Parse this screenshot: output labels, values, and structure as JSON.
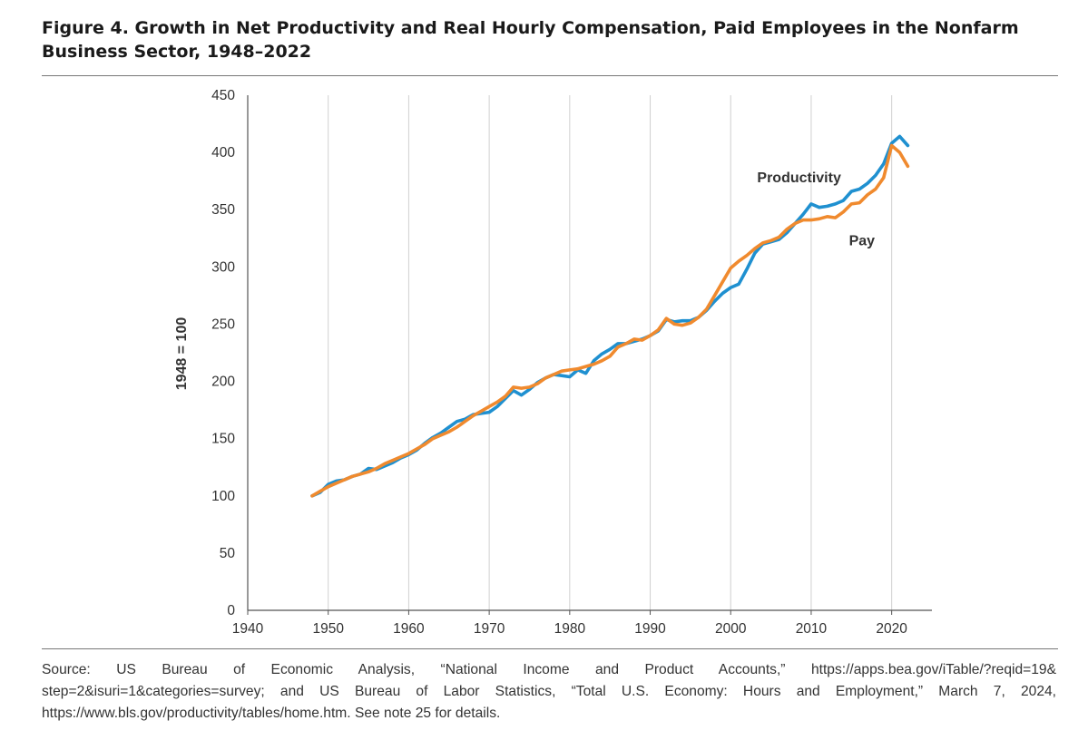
{
  "figure": {
    "title": "Figure 4. Growth in Net Productivity and Real Hourly Compensation, Paid Employees in the Nonfarm Business Sector, 1948–2022",
    "source_lines": [
      "Source: US Bureau of Economic Analysis, “National Income and Product Accounts,” https://apps.bea.gov/iTable/?reqid=19&",
      "step=2&isuri=1&categories=survey; and US Bureau of Labor Statistics, “Total U.S. Economy: Hours and Employment,” March 7, 2024,",
      "https://www.bls.gov/productivity/tables/home.htm. See note 25 for details."
    ]
  },
  "chart_data": {
    "type": "line",
    "title": "Figure 4. Growth in Net Productivity and Real Hourly Compensation, Paid Employees in the Nonfarm Business Sector, 1948–2022",
    "xlabel": "",
    "ylabel": "1948 = 100",
    "xlim": [
      1940,
      2025
    ],
    "ylim": [
      0,
      450
    ],
    "xticks": [
      1940,
      1950,
      1960,
      1970,
      1980,
      1990,
      2000,
      2010,
      2020
    ],
    "yticks": [
      0,
      50,
      100,
      150,
      200,
      250,
      300,
      350,
      400,
      450
    ],
    "grid": "vertical",
    "colors": {
      "productivity": "#1f90d0",
      "pay": "#f08a2e",
      "grid": "#d0d0d0",
      "axis": "#555555"
    },
    "annotations": [
      {
        "text": "Productivity",
        "series": "Productivity",
        "x": 2008.5,
        "y": 378
      },
      {
        "text": "Pay",
        "series": "Pay",
        "x": 2016.3,
        "y": 323
      }
    ],
    "x": [
      1948,
      1949,
      1950,
      1951,
      1952,
      1953,
      1954,
      1955,
      1956,
      1957,
      1958,
      1959,
      1960,
      1961,
      1962,
      1963,
      1964,
      1965,
      1966,
      1967,
      1968,
      1969,
      1970,
      1971,
      1972,
      1973,
      1974,
      1975,
      1976,
      1977,
      1978,
      1979,
      1980,
      1981,
      1982,
      1983,
      1984,
      1985,
      1986,
      1987,
      1988,
      1989,
      1990,
      1991,
      1992,
      1993,
      1994,
      1995,
      1996,
      1997,
      1998,
      1999,
      2000,
      2001,
      2002,
      2003,
      2004,
      2005,
      2006,
      2007,
      2008,
      2009,
      2010,
      2011,
      2012,
      2013,
      2014,
      2015,
      2016,
      2017,
      2018,
      2019,
      2020,
      2021,
      2022
    ],
    "series": [
      {
        "name": "Productivity",
        "color": "#1f90d0",
        "values": [
          100,
          103,
          110,
          113,
          114,
          117,
          119,
          124,
          123,
          126,
          129,
          133,
          136,
          140,
          146,
          151,
          155,
          160,
          165,
          167,
          171,
          172,
          173,
          178,
          185,
          192,
          188,
          193,
          199,
          203,
          206,
          205,
          204,
          210,
          207,
          218,
          224,
          228,
          233,
          233,
          235,
          237,
          240,
          244,
          254,
          252,
          253,
          253,
          256,
          262,
          270,
          277,
          282,
          285,
          298,
          312,
          320,
          322,
          324,
          330,
          338,
          346,
          355,
          352,
          353,
          355,
          358,
          366,
          368,
          373,
          380,
          390,
          408,
          414,
          406
        ]
      },
      {
        "name": "Pay",
        "color": "#f08a2e",
        "values": [
          100,
          104,
          108,
          111,
          114,
          117,
          119,
          121,
          124,
          128,
          131,
          134,
          137,
          141,
          145,
          150,
          153,
          156,
          160,
          165,
          170,
          174,
          178,
          182,
          187,
          195,
          194,
          195,
          198,
          203,
          206,
          209,
          210,
          211,
          213,
          215,
          218,
          222,
          230,
          233,
          237,
          236,
          240,
          245,
          255,
          250,
          249,
          251,
          256,
          263,
          275,
          287,
          299,
          305,
          310,
          316,
          321,
          323,
          326,
          333,
          338,
          341,
          341,
          342,
          344,
          343,
          348,
          355,
          356,
          363,
          368,
          378,
          406,
          400,
          388
        ]
      }
    ]
  }
}
